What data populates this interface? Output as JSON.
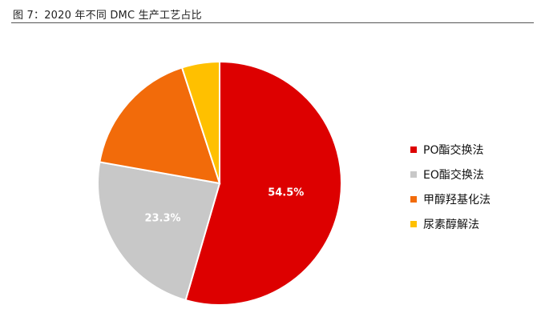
{
  "title": "图 7：2020 年不同 DMC 生产工艺占比",
  "chart_data": {
    "type": "pie",
    "series": [
      {
        "name": "PO酯交换法",
        "value": 54.5,
        "color": "#dd0000",
        "label": "54.5%"
      },
      {
        "name": "EO酯交换法",
        "value": 23.3,
        "color": "#c8c8c8",
        "label": "23.3%"
      },
      {
        "name": "甲醇羟基化法",
        "value": 17.2,
        "color": "#f26b0a",
        "label": ""
      },
      {
        "name": "尿素醇解法",
        "value": 5.0,
        "color": "#ffc000",
        "label": ""
      }
    ],
    "legend_position": "right",
    "start_angle": "12 o'clock",
    "direction": "clockwise"
  }
}
